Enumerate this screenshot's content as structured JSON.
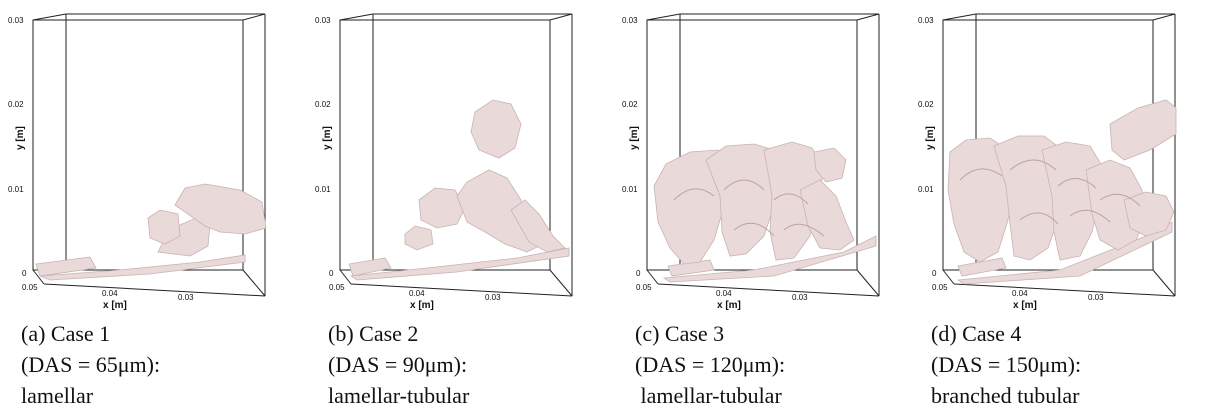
{
  "panels": [
    {
      "id": "a",
      "y_ticks": [
        "0.03",
        "0.02",
        "0.01",
        "0"
      ],
      "x_ticks": [
        "0.05",
        "0.04",
        "0.03"
      ],
      "y_label": "y [m]",
      "x_label": "x [m]",
      "caption": [
        "(a)  Case 1",
        "(DAS = 65μm):",
        "lamellar"
      ]
    },
    {
      "id": "b",
      "y_ticks": [
        "0.03",
        "0.02",
        "0.01",
        "0"
      ],
      "x_ticks": [
        "0.05",
        "0.04",
        "0.03"
      ],
      "y_label": "y [m]",
      "x_label": "x [m]",
      "caption": [
        "(b)  Case 2",
        "(DAS = 90μm):",
        "lamellar-tubular"
      ]
    },
    {
      "id": "c",
      "y_ticks": [
        "0.03",
        "0.02",
        "0.01",
        "0"
      ],
      "x_ticks": [
        "0.05",
        "0.04",
        "0.03"
      ],
      "y_label": "y [m]",
      "x_label": "x [m]",
      "caption": [
        "(c)  Case 3",
        "(DAS = 120μm):",
        " lamellar-tubular"
      ]
    },
    {
      "id": "d",
      "y_ticks": [
        "0.03",
        "0.02",
        "0.01",
        "0"
      ],
      "x_ticks": [
        "0.05",
        "0.04",
        "0.03"
      ],
      "y_label": "y [m]",
      "x_label": "x [m]",
      "caption": [
        "(d)  Case 4",
        "(DAS = 150μm):",
        "branched tubular"
      ]
    }
  ],
  "colors": {
    "surface": "#ead9d9",
    "surface_shade": "#c9b3b3",
    "frame": "#222222"
  }
}
